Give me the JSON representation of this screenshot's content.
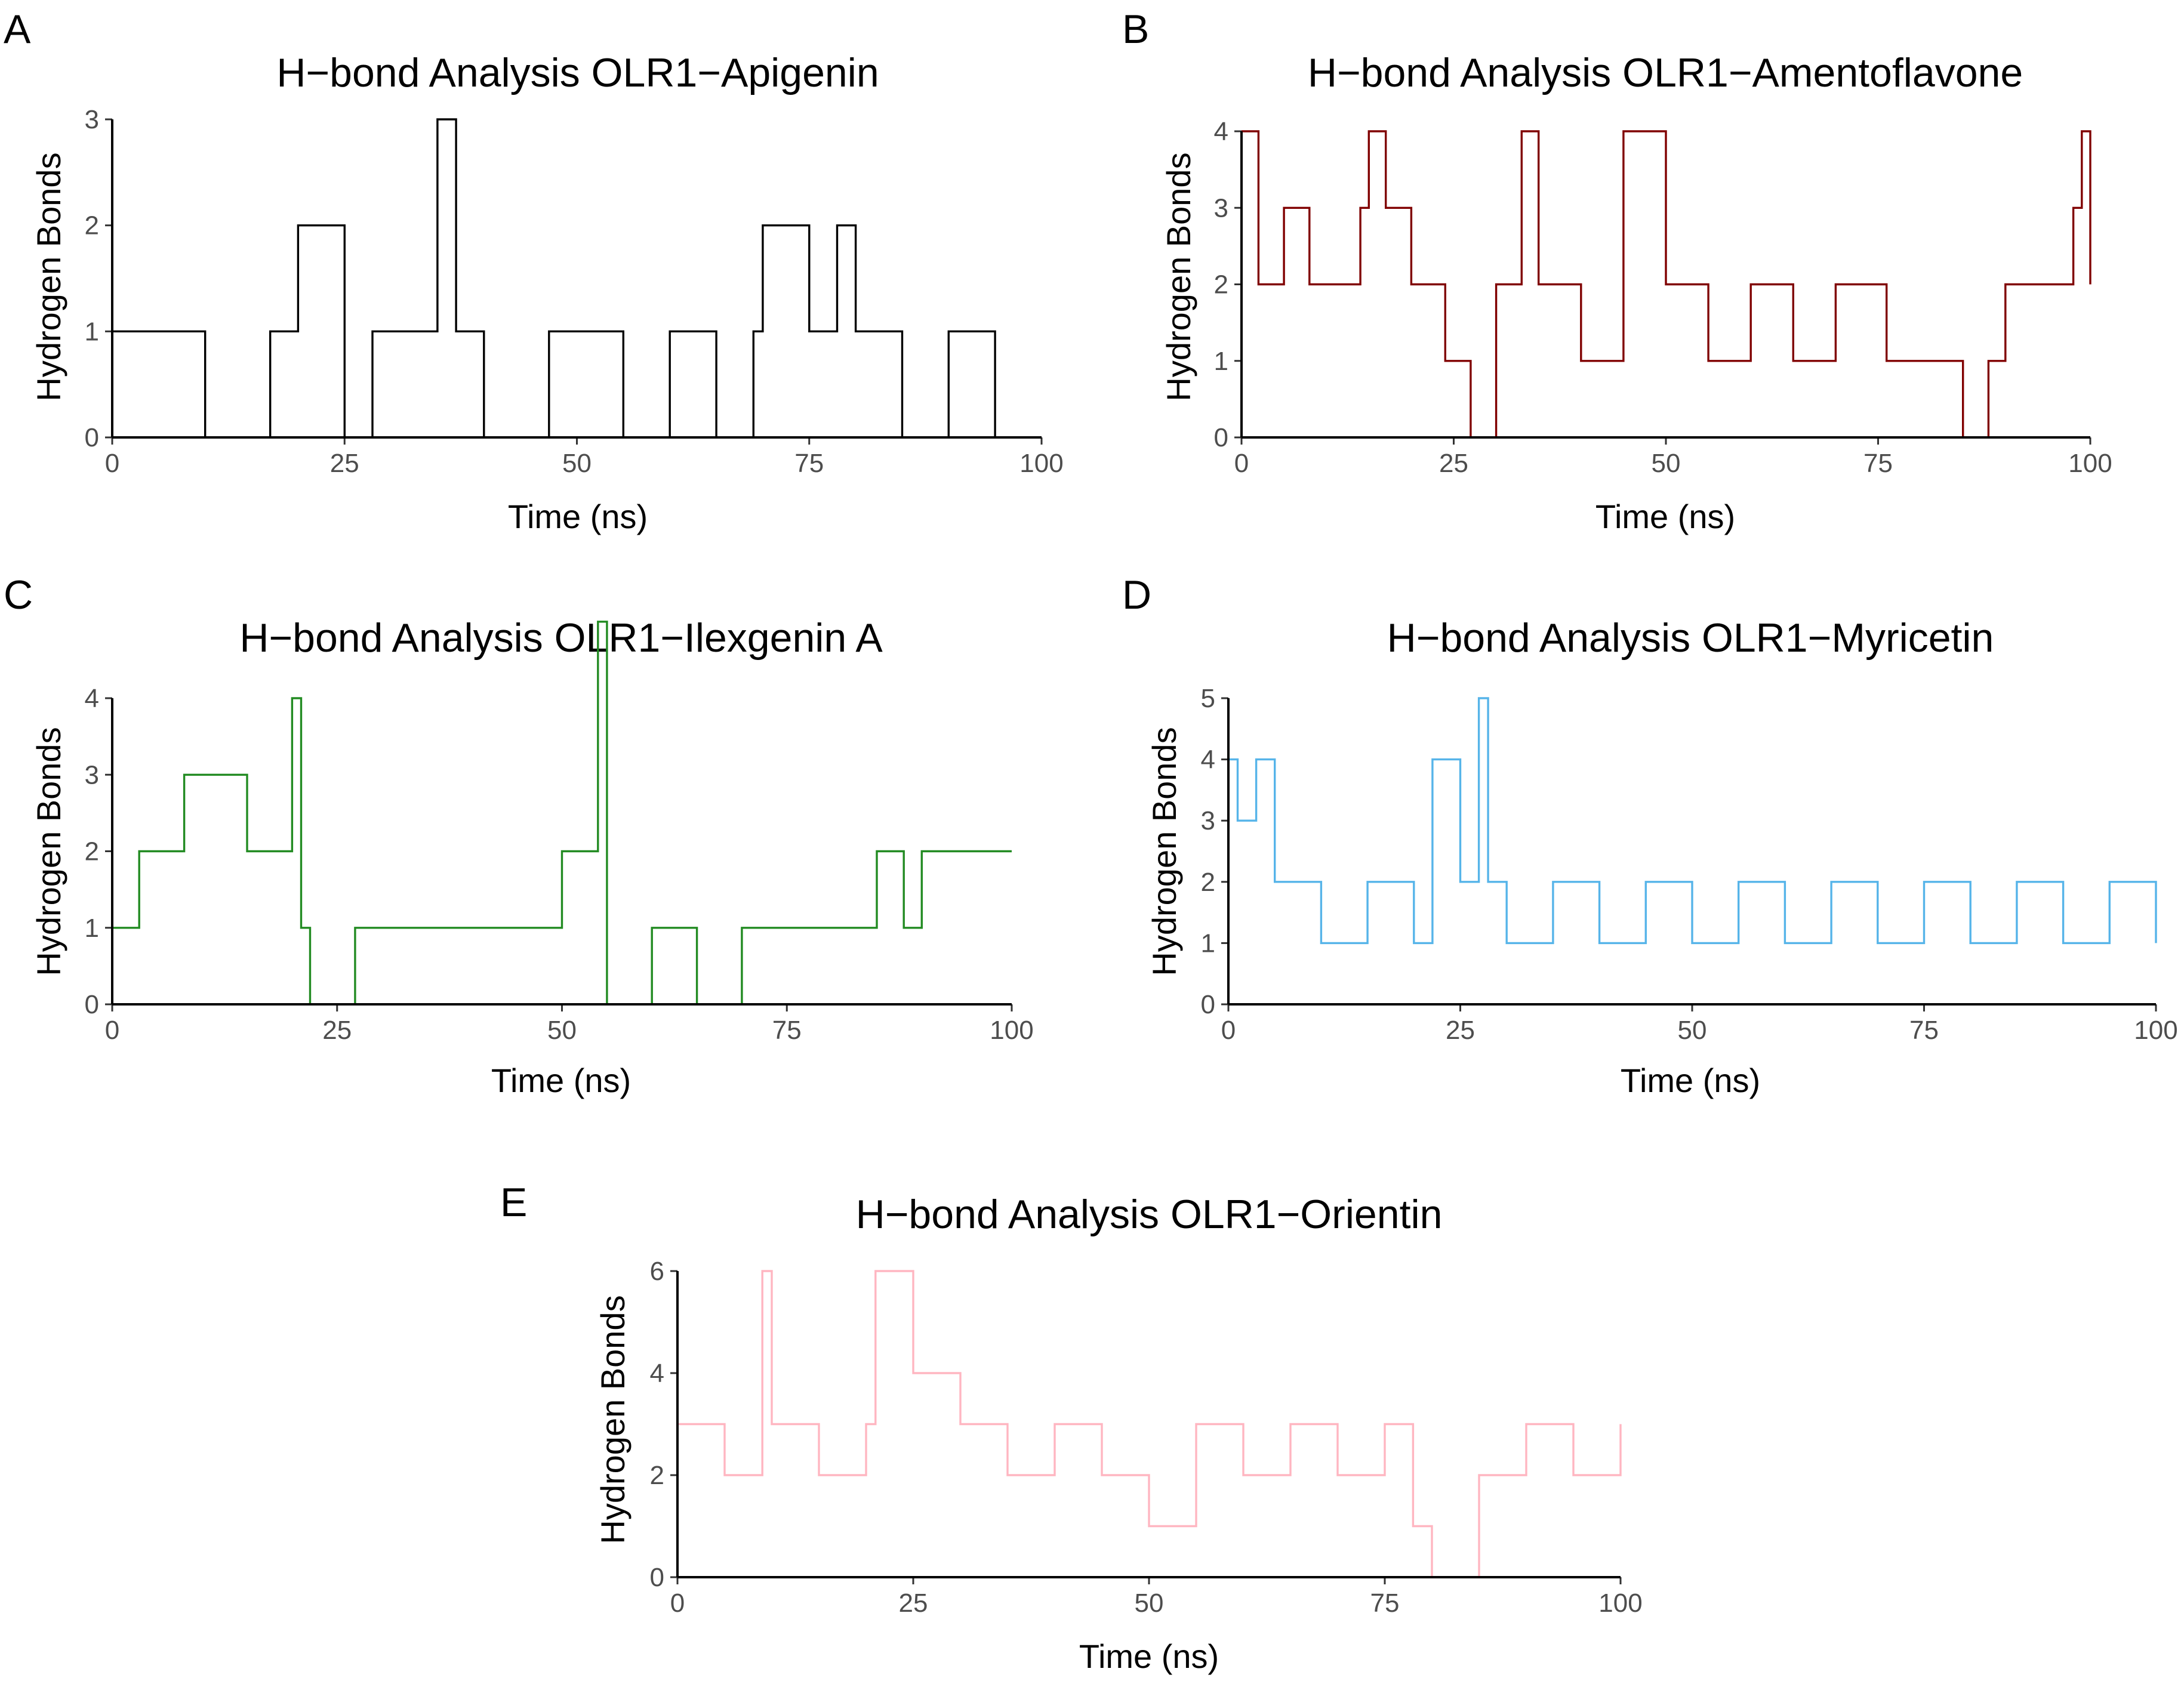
{
  "figure": {
    "panels": [
      "A",
      "B",
      "C",
      "D",
      "E"
    ]
  },
  "chart_data": [
    {
      "panel": "A",
      "type": "line",
      "title": "H−bond Analysis OLR1−Apigenin",
      "xlabel": "Time (ns)",
      "ylabel": "Hydrogen Bonds",
      "xlim": [
        0,
        100
      ],
      "ylim": [
        0,
        3
      ],
      "xticks": [
        0,
        25,
        50,
        75,
        100
      ],
      "yticks": [
        0,
        1,
        2,
        3
      ],
      "color": "#000000",
      "series": [
        {
          "name": "OLR1-Apigenin",
          "x": [
            0,
            5,
            10,
            15,
            17,
            19,
            20,
            25,
            28,
            30,
            35,
            37,
            40,
            45,
            47,
            50,
            55,
            60,
            65,
            69,
            70,
            75,
            78,
            80,
            85,
            90,
            95,
            100
          ],
          "values": [
            1,
            1,
            0,
            0,
            1,
            1,
            2,
            0,
            1,
            1,
            3,
            1,
            0,
            0,
            1,
            1,
            0,
            1,
            0,
            1,
            2,
            1,
            2,
            1,
            0,
            1,
            0,
            0
          ]
        }
      ]
    },
    {
      "panel": "B",
      "type": "line",
      "title": "H−bond Analysis OLR1−Amentoflavone",
      "xlabel": "Time (ns)",
      "ylabel": "Hydrogen Bonds",
      "xlim": [
        0,
        100
      ],
      "ylim": [
        0,
        4
      ],
      "xticks": [
        0,
        25,
        50,
        75,
        100
      ],
      "yticks": [
        0,
        1,
        2,
        3,
        4
      ],
      "color": "#800000",
      "series": [
        {
          "name": "OLR1-Amentoflavone",
          "x": [
            0,
            2,
            5,
            8,
            10,
            14,
            15,
            17,
            20,
            24,
            25,
            27,
            30,
            33,
            35,
            40,
            45,
            50,
            55,
            60,
            65,
            70,
            75,
            76,
            80,
            85,
            88,
            90,
            95,
            98,
            99,
            100
          ],
          "values": [
            4,
            2,
            3,
            2,
            2,
            3,
            4,
            3,
            2,
            1,
            1,
            0,
            2,
            4,
            2,
            1,
            4,
            2,
            1,
            2,
            1,
            2,
            2,
            1,
            1,
            0,
            1,
            2,
            2,
            3,
            4,
            2
          ]
        }
      ]
    },
    {
      "panel": "C",
      "type": "line",
      "title": "H−bond Analysis OLR1−Ilexgenin A",
      "xlabel": "Time (ns)",
      "ylabel": "Hydrogen Bonds",
      "xlim": [
        0,
        100
      ],
      "ylim": [
        0,
        4
      ],
      "xticks": [
        0,
        25,
        50,
        75,
        100
      ],
      "yticks": [
        0,
        1,
        2,
        3,
        4
      ],
      "color": "#228B22",
      "series": [
        {
          "name": "OLR1-Ilexgenin A",
          "x": [
            0,
            3,
            5,
            8,
            10,
            15,
            18,
            20,
            21,
            22,
            25,
            27,
            30,
            35,
            40,
            45,
            50,
            54,
            55,
            60,
            65,
            70,
            75,
            80,
            85,
            88,
            90,
            95,
            100
          ],
          "values": [
            1,
            2,
            2,
            3,
            3,
            2,
            2,
            4,
            1,
            0,
            0,
            1,
            1,
            1,
            1,
            1,
            2,
            5,
            0,
            1,
            0,
            1,
            1,
            1,
            2,
            1,
            2,
            2,
            2
          ]
        }
      ]
    },
    {
      "panel": "D",
      "type": "line",
      "title": "H−bond Analysis OLR1−Myricetin",
      "xlabel": "Time (ns)",
      "ylabel": "Hydrogen Bonds",
      "xlim": [
        0,
        100
      ],
      "ylim": [
        0,
        5
      ],
      "xticks": [
        0,
        25,
        50,
        75,
        100
      ],
      "yticks": [
        0,
        1,
        2,
        3,
        4,
        5
      ],
      "color": "#56B4E9",
      "series": [
        {
          "name": "OLR1-Myricetin",
          "x": [
            0,
            1,
            3,
            5,
            10,
            15,
            20,
            22,
            25,
            27,
            28,
            30,
            35,
            40,
            45,
            50,
            55,
            60,
            65,
            70,
            75,
            80,
            85,
            90,
            95,
            100
          ],
          "values": [
            4,
            3,
            4,
            2,
            1,
            2,
            1,
            4,
            2,
            5,
            2,
            1,
            2,
            1,
            2,
            1,
            2,
            1,
            2,
            1,
            2,
            1,
            2,
            1,
            2,
            1
          ]
        }
      ]
    },
    {
      "panel": "E",
      "type": "line",
      "title": "H−bond Analysis OLR1−Orientin",
      "xlabel": "Time (ns)",
      "ylabel": "Hydrogen Bonds",
      "xlim": [
        0,
        100
      ],
      "ylim": [
        0,
        6
      ],
      "xticks": [
        0,
        25,
        50,
        75,
        100
      ],
      "yticks": [
        0,
        2,
        4,
        6
      ],
      "color": "#FFB6C1",
      "series": [
        {
          "name": "OLR1-Orientin",
          "x": [
            0,
            5,
            9,
            10,
            15,
            20,
            21,
            25,
            30,
            35,
            40,
            45,
            50,
            55,
            60,
            65,
            70,
            75,
            78,
            80,
            85,
            90,
            95,
            100
          ],
          "values": [
            3,
            2,
            6,
            3,
            2,
            3,
            6,
            4,
            3,
            2,
            3,
            2,
            1,
            3,
            2,
            3,
            2,
            3,
            1,
            0,
            2,
            3,
            2,
            3
          ]
        }
      ]
    }
  ]
}
